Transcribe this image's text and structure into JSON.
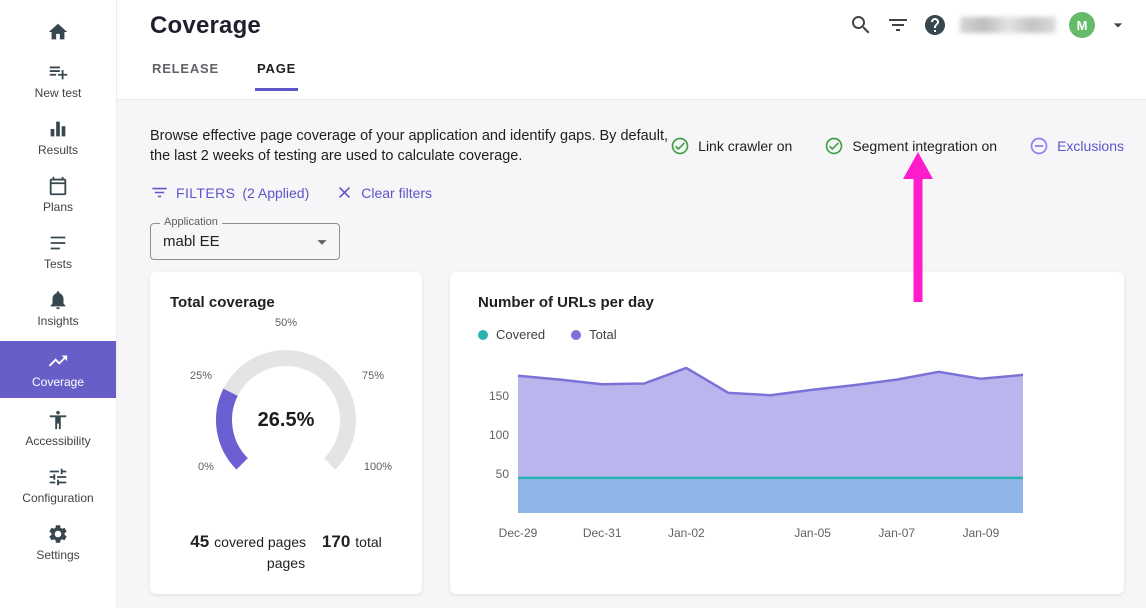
{
  "colors": {
    "brand_purple": "#5e55c8",
    "nav_active_bg": "#675fc7",
    "status_green": "#43a047",
    "exclusions_purple": "#8a7ff2",
    "annotation_pink": "#ff1ccd"
  },
  "sidebar": {
    "items": [
      {
        "id": "home",
        "label": ""
      },
      {
        "id": "new-test",
        "label": "New test"
      },
      {
        "id": "results",
        "label": "Results"
      },
      {
        "id": "plans",
        "label": "Plans"
      },
      {
        "id": "tests",
        "label": "Tests"
      },
      {
        "id": "insights",
        "label": "Insights"
      },
      {
        "id": "coverage",
        "label": "Coverage",
        "active": true
      },
      {
        "id": "accessibility",
        "label": "Accessibility"
      },
      {
        "id": "configuration",
        "label": "Configuration"
      },
      {
        "id": "settings",
        "label": "Settings"
      }
    ]
  },
  "header": {
    "title": "Coverage",
    "tabs": [
      {
        "label": "RELEASE",
        "active": false
      },
      {
        "label": "PAGE",
        "active": true
      }
    ],
    "account": {
      "initial": "M"
    }
  },
  "page": {
    "description": "Browse effective page coverage of your application and identify gaps. By default, the last 2 weeks of testing are used to calculate coverage.",
    "status_indicators": [
      {
        "label": "Link crawler on"
      },
      {
        "label": "Segment integration on"
      }
    ],
    "exclusions_label": "Exclusions",
    "filters_label": "FILTERS",
    "filters_count": "(2 Applied)",
    "clear_filters_label": "Clear filters",
    "application_field": {
      "label": "Application",
      "value": "mabl EE"
    }
  },
  "annotation": {
    "type": "arrow-up",
    "points_to": "Segment integration on",
    "color": "#ff1ccd"
  },
  "chart_data": [
    {
      "type": "gauge",
      "title": "Total coverage",
      "value_percent": 26.5,
      "value_label": "26.5%",
      "ticks": [
        "0%",
        "25%",
        "50%",
        "75%",
        "100%"
      ],
      "arc_color": "#6c5fd2",
      "track_color": "#e4e4e7",
      "stats": {
        "covered_value": "45",
        "covered_label": "covered pages",
        "total_value": "170",
        "total_label": "total pages"
      }
    },
    {
      "type": "area",
      "title": "Number of URLs per day",
      "x": [
        "Dec-29",
        "Dec-30",
        "Dec-31",
        "Jan-01",
        "Jan-02",
        "Jan-03",
        "Jan-04",
        "Jan-05",
        "Jan-06",
        "Jan-07",
        "Jan-08",
        "Jan-09",
        "Jan-10"
      ],
      "x_tick_labels": [
        "Dec-29",
        "Dec-31",
        "Jan-02",
        "Jan-05",
        "Jan-07",
        "Jan-09"
      ],
      "x_tick_indices": [
        0,
        2,
        4,
        7,
        9,
        11
      ],
      "yticks": [
        50,
        100,
        150
      ],
      "ylim": [
        0,
        200
      ],
      "legend_position": "top-left",
      "grid": false,
      "series": [
        {
          "name": "Covered",
          "color": "#2bb3b0",
          "fill": "#8cb5e6",
          "values": [
            45,
            45,
            45,
            45,
            45,
            45,
            45,
            45,
            45,
            45,
            45,
            45,
            45
          ]
        },
        {
          "name": "Total",
          "color": "#7b72d8",
          "fill": "#a9a2e8",
          "values": [
            176,
            171,
            165,
            166,
            186,
            154,
            151,
            158,
            164,
            171,
            181,
            172,
            177
          ]
        }
      ]
    }
  ]
}
